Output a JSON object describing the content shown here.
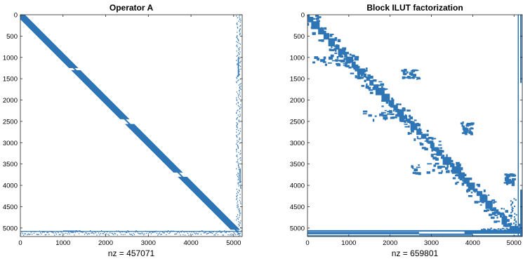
{
  "chart_data": [
    {
      "type": "scatter",
      "title": "Operator A",
      "xlabel": "nz = 457071",
      "ylabel": "",
      "xlim": [
        0,
        5200
      ],
      "ylim": [
        5200,
        0
      ],
      "y_reversed": true,
      "xticks": [
        0,
        1000,
        2000,
        3000,
        4000,
        5000
      ],
      "yticks": [
        0,
        500,
        1000,
        1500,
        2000,
        2500,
        3000,
        3500,
        4000,
        4500,
        5000
      ],
      "color": "#2e75b6",
      "nnz": 457071,
      "pattern": {
        "diagonal_band_segments": [
          {
            "row_start": 0,
            "row_end": 1250,
            "halfwidth": 110
          },
          {
            "row_start": 1300,
            "row_end": 2450,
            "halfwidth": 110
          },
          {
            "row_start": 2560,
            "row_end": 3700,
            "halfwidth": 110
          },
          {
            "row_start": 3800,
            "row_end": 5040,
            "halfwidth": 110
          }
        ],
        "bottom_border_rows": [
          5050,
          5160
        ],
        "right_border_cols": [
          5050,
          5160
        ]
      }
    },
    {
      "type": "scatter",
      "title": "Block ILUT factorization",
      "xlabel": "nz = 659801",
      "ylabel": "",
      "xlim": [
        0,
        5200
      ],
      "ylim": [
        5200,
        0
      ],
      "y_reversed": true,
      "xticks": [
        0,
        1000,
        2000,
        3000,
        4000,
        5000
      ],
      "yticks": [
        0,
        500,
        1000,
        1500,
        2000,
        2500,
        3000,
        3500,
        4000,
        4500,
        5000
      ],
      "color": "#2e75b6",
      "nnz": 659801,
      "pattern": {
        "diagonal_blocks": "irregular block-diagonal fill along main diagonal",
        "offdiag_clusters": [
          {
            "rows": [
              950,
              1150
            ],
            "cols": [
              100,
              1300
            ]
          },
          {
            "rows": [
              1250,
              1500
            ],
            "cols": [
              2250,
              2700
            ]
          },
          {
            "rows": [
              2220,
              2450
            ],
            "cols": [
              1250,
              2300
            ]
          },
          {
            "rows": [
              2500,
              2800
            ],
            "cols": [
              3700,
              3950
            ]
          },
          {
            "rows": [
              3450,
              3700
            ],
            "cols": [
              2500,
              3600
            ]
          },
          {
            "rows": [
              3700,
              3950
            ],
            "cols": [
              4750,
              4950
            ]
          }
        ],
        "bottom_border_rows": [
          5050,
          5200
        ],
        "right_border_cols": [
          5050,
          5200
        ]
      }
    }
  ]
}
